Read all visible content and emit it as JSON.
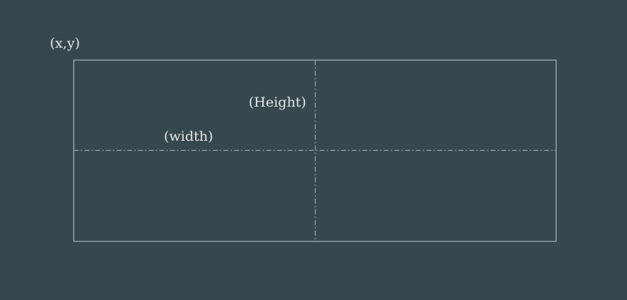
{
  "labels": {
    "origin": "(x,y)",
    "height": "(Height)",
    "width": "(width)"
  },
  "colors": {
    "background": "#36474f",
    "rectangle_stroke": "#a3acb0",
    "axis_stroke": "#9aa4a8",
    "text": "#e6e6e6"
  }
}
